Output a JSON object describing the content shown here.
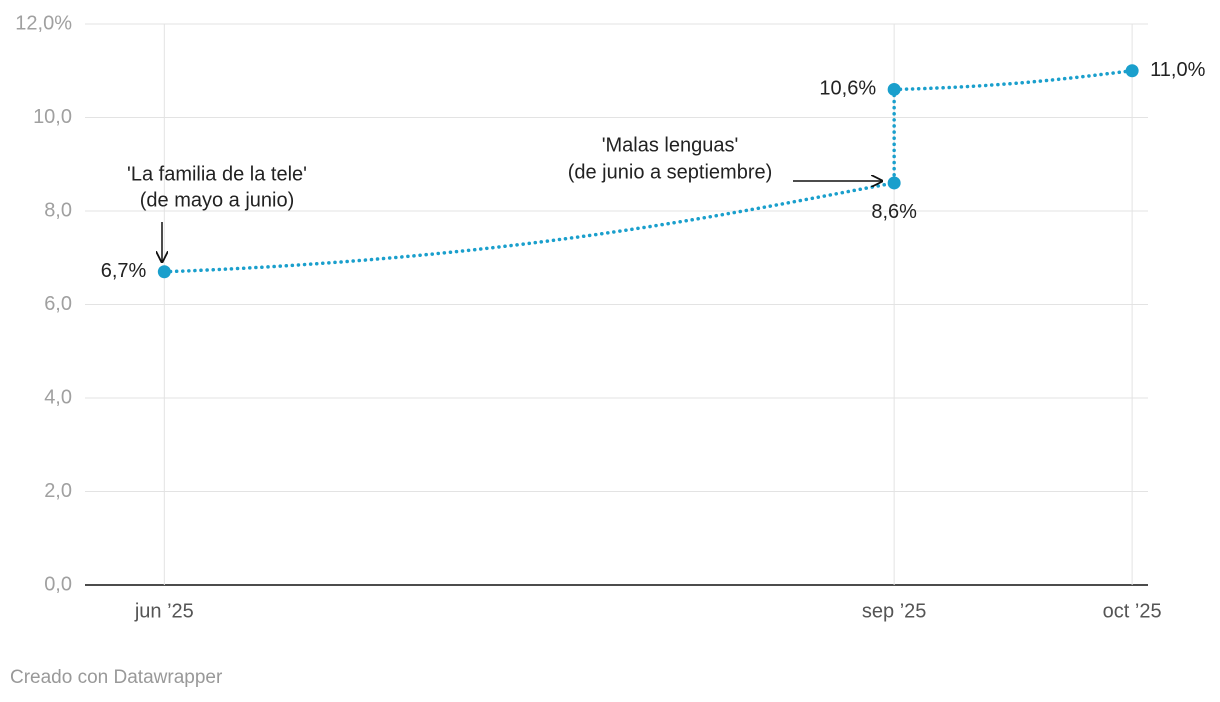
{
  "chart_data": {
    "type": "line",
    "x": [
      "2025-06",
      "2025-09",
      "2025-09",
      "2025-10"
    ],
    "values": [
      6.7,
      8.6,
      10.6,
      11.0
    ],
    "value_labels": [
      "6,7%",
      "8,6%",
      "10,6%",
      "11,0%"
    ],
    "color": "#1a9fcc",
    "xlim": [
      "2025-05-22",
      "2025-10-03"
    ],
    "xticks": [
      {
        "value": "2025-06",
        "label": "jun ’25"
      },
      {
        "value": "2025-09",
        "label": "sep ’25"
      },
      {
        "value": "2025-10",
        "label": "oct ’25"
      }
    ],
    "ylim": [
      0,
      12
    ],
    "yticks": [
      {
        "value": 0,
        "label": "0,0"
      },
      {
        "value": 2,
        "label": "2,0"
      },
      {
        "value": 4,
        "label": "4,0"
      },
      {
        "value": 6,
        "label": "6,0"
      },
      {
        "value": 8,
        "label": "8,0"
      },
      {
        "value": 10,
        "label": "10,0"
      },
      {
        "value": 12,
        "label": "12,0%"
      }
    ],
    "grid": true,
    "annotations": [
      {
        "lines": [
          "'La familia de la tele'",
          "(de mayo a junio)"
        ]
      },
      {
        "lines": [
          "'Malas lenguas'",
          "(de junio a septiembre)"
        ]
      }
    ],
    "credit": "Creado con Datawrapper"
  }
}
